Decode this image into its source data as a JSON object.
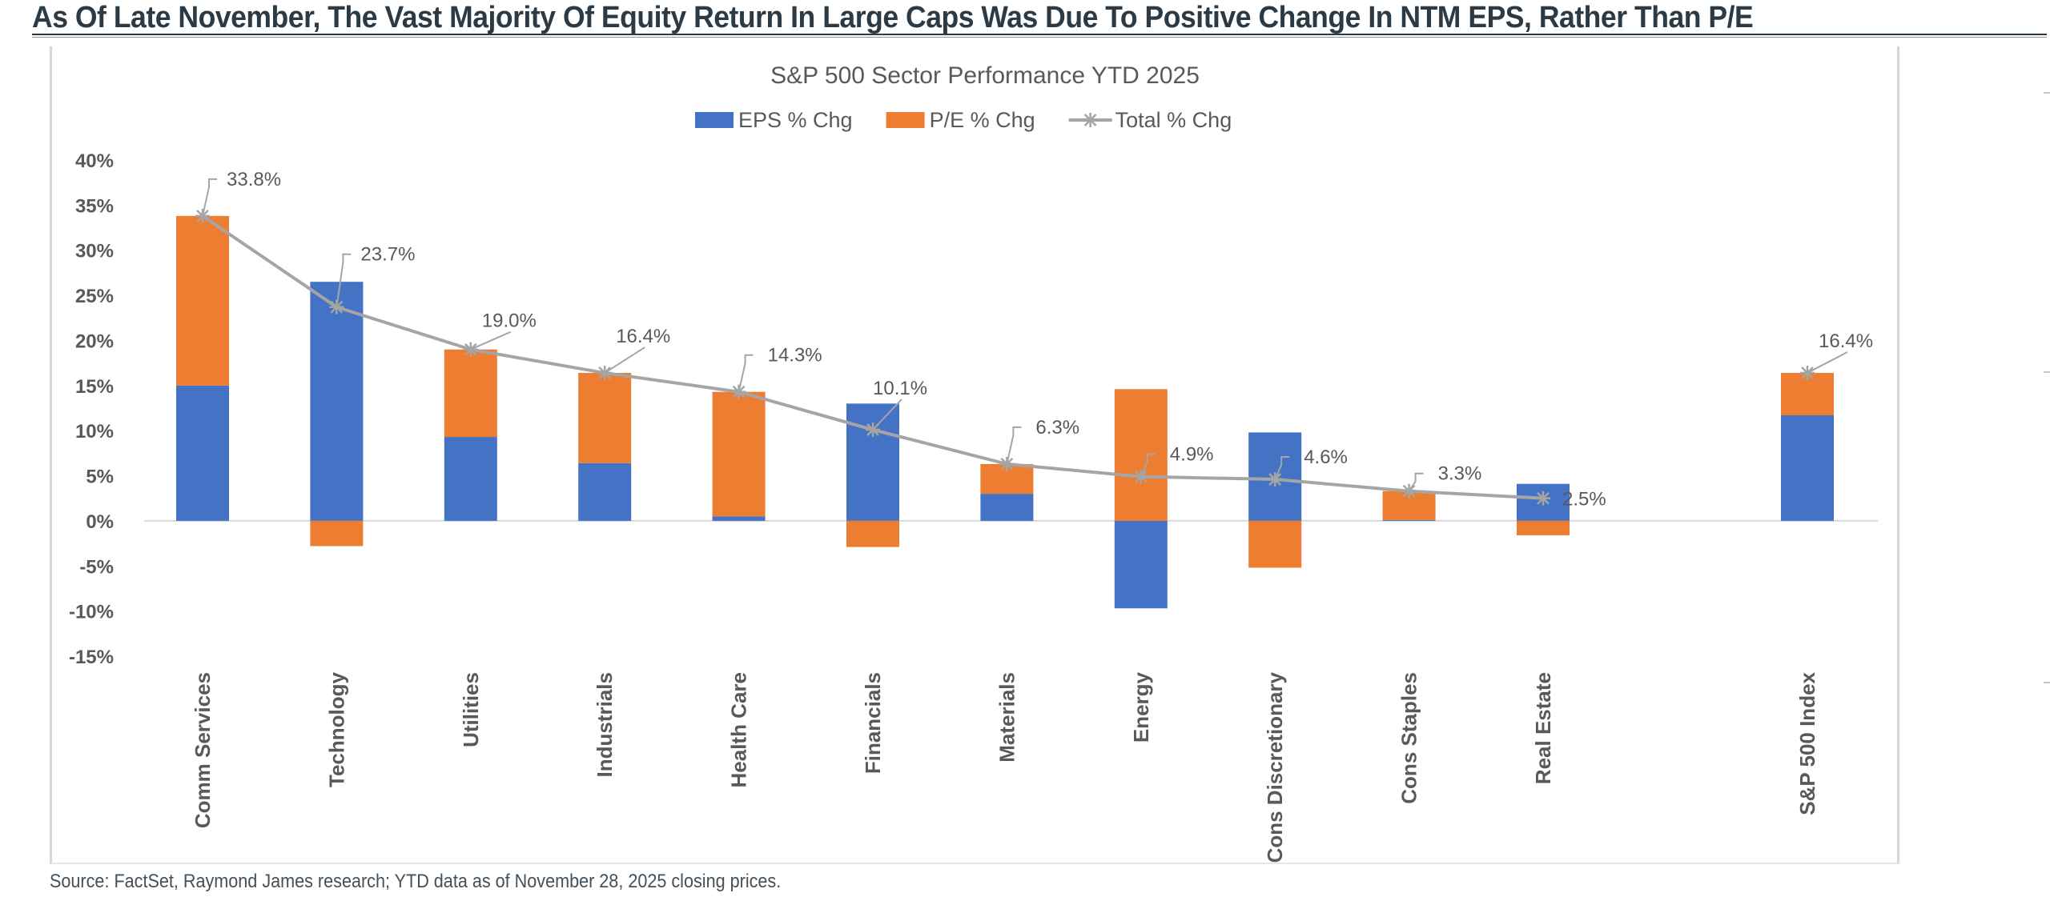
{
  "page": {
    "headline": "As Of Late November, The Vast Majority Of Equity Return In Large Caps Was Due To Positive Change In NTM EPS, Rather Than P/E",
    "source_note": "Source: FactSet, Raymond James research; YTD data as of November 28, 2025 closing prices."
  },
  "chart_data": {
    "type": "bar",
    "stacked": true,
    "title": "S&P 500 Sector Performance YTD 2025",
    "xlabel": "",
    "ylabel": "",
    "ylim": [
      -15,
      40
    ],
    "yticks": [
      40,
      35,
      30,
      25,
      20,
      15,
      10,
      5,
      0,
      -5,
      -10,
      -15
    ],
    "ytick_labels": [
      "40%",
      "35%",
      "30%",
      "25%",
      "20%",
      "15%",
      "10%",
      "5%",
      "0%",
      "-5%",
      "-10%",
      "-15%"
    ],
    "grid": false,
    "legend_position": "top-center",
    "categories": [
      "Comm Services",
      "Technology",
      "Utilities",
      "Industrials",
      "Health Care",
      "Financials",
      "Materials",
      "Energy",
      "Cons Discretionary",
      "Cons Staples",
      "Real Estate",
      "S&P 500 Index"
    ],
    "gap_before_last": true,
    "series": [
      {
        "name": "EPS % Chg",
        "type": "bar",
        "color": "#4472c4",
        "values": [
          15.0,
          26.5,
          9.3,
          6.4,
          0.5,
          13.0,
          3.0,
          -9.7,
          9.8,
          0.1,
          4.1,
          11.7
        ]
      },
      {
        "name": "P/E % Chg",
        "type": "bar",
        "color": "#ed7d31",
        "values": [
          18.8,
          -2.8,
          9.7,
          10.0,
          13.8,
          -2.9,
          3.3,
          14.6,
          -5.2,
          3.2,
          -1.6,
          4.7
        ]
      },
      {
        "name": "Total % Chg",
        "type": "line",
        "color": "#a5a5a5",
        "marker": "star",
        "values": [
          33.8,
          23.7,
          19.0,
          16.4,
          14.3,
          10.1,
          6.3,
          4.9,
          4.6,
          3.3,
          2.5,
          16.4
        ],
        "data_labels": [
          "33.8%",
          "23.7%",
          "19.0%",
          "16.4%",
          "14.3%",
          "10.1%",
          "6.3%",
          "4.9%",
          "4.6%",
          "3.3%",
          "2.5%",
          "16.4%"
        ],
        "line_excludes_last": true
      }
    ]
  }
}
